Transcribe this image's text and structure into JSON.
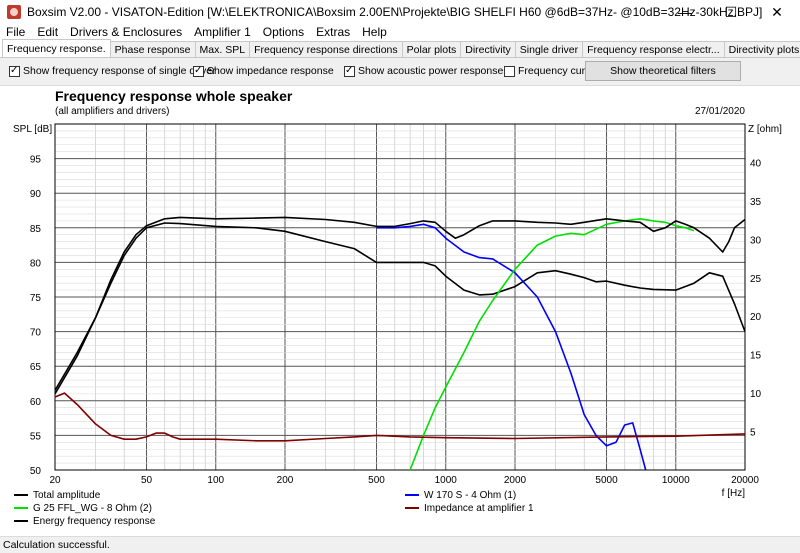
{
  "window": {
    "title": "Boxsim V2.00 - VISATON-Edition [W:\\ELEKTRONICA\\Boxsim 2.00EN\\Projekte\\BIG SHELFI H60 @6dB=37Hz- @10dB=32Hz-30kHz.BPJ]",
    "minimize": "—",
    "maximize": "☐",
    "close": "✕"
  },
  "menu": [
    "File",
    "Edit",
    "Drivers & Enclosures",
    "Amplifier 1",
    "Options",
    "Extras",
    "Help"
  ],
  "tabs": [
    {
      "label": "Frequency response.",
      "active": true
    },
    {
      "label": "Phase response",
      "active": false
    },
    {
      "label": "Max. SPL",
      "active": false
    },
    {
      "label": "Frequency response directions",
      "active": false
    },
    {
      "label": "Polar plots",
      "active": false
    },
    {
      "label": "Directivity",
      "active": false
    },
    {
      "label": "Single driver",
      "active": false
    },
    {
      "label": "Frequency response electr...",
      "active": false
    },
    {
      "label": "Directivity plots",
      "active": false
    }
  ],
  "options": {
    "single_driver": {
      "label": "Show frequency response of single driver",
      "checked": true
    },
    "impedance": {
      "label": "Show impedance response",
      "checked": true
    },
    "acoustic_power": {
      "label": "Show acoustic power response",
      "checked": true
    },
    "cursor": {
      "label": "Frequency cursor",
      "checked": false
    },
    "theoretical_btn": "Show theoretical filters"
  },
  "status": "Calculation successful.",
  "chart_data": {
    "type": "line",
    "title": "Frequency response whole speaker",
    "subtitle": "(all amplifiers and drivers)",
    "date": "27/01/2020",
    "ylabel": "SPL [dB]",
    "y2label": "Z [ohm]",
    "xlabel": "f [Hz]",
    "xscale": "log",
    "xlim": [
      20,
      20000
    ],
    "ylim": [
      50,
      100
    ],
    "y2lim": [
      0,
      45
    ],
    "xticks": [
      20,
      50,
      100,
      200,
      500,
      1000,
      2000,
      5000,
      10000,
      20000
    ],
    "yticks": [
      50,
      55,
      60,
      65,
      70,
      75,
      80,
      85,
      90,
      95
    ],
    "y2ticks": [
      5,
      10,
      15,
      20,
      25,
      30,
      35,
      40
    ],
    "grid": true,
    "legend_position": "bottom",
    "series": [
      {
        "name": "Total amplitude",
        "color": "#000000",
        "axis": "left",
        "points": [
          [
            20,
            61.5
          ],
          [
            25,
            67
          ],
          [
            30,
            72
          ],
          [
            35,
            77
          ],
          [
            40,
            81
          ],
          [
            45,
            83.5
          ],
          [
            50,
            85
          ],
          [
            60,
            85.7
          ],
          [
            70,
            85.6
          ],
          [
            100,
            85.2
          ],
          [
            150,
            85
          ],
          [
            200,
            84.5
          ],
          [
            300,
            83
          ],
          [
            400,
            82
          ],
          [
            500,
            80
          ],
          [
            600,
            80
          ],
          [
            700,
            80
          ],
          [
            800,
            80
          ],
          [
            900,
            79.5
          ],
          [
            1000,
            78
          ],
          [
            1200,
            76
          ],
          [
            1400,
            75.3
          ],
          [
            1600,
            75.4
          ],
          [
            2000,
            76.5
          ],
          [
            2500,
            78.5
          ],
          [
            3000,
            78.8
          ],
          [
            3500,
            78.3
          ],
          [
            4000,
            77.8
          ],
          [
            4500,
            77.2
          ],
          [
            5000,
            77.3
          ],
          [
            6000,
            76.7
          ],
          [
            7000,
            76.3
          ],
          [
            8000,
            76.1
          ],
          [
            10000,
            76
          ],
          [
            12000,
            77
          ],
          [
            14000,
            78.5
          ],
          [
            16000,
            78
          ],
          [
            18000,
            74
          ],
          [
            20000,
            70
          ]
        ]
      },
      {
        "name": "W 170 S - 4 Ohm (1)",
        "color": "#0000ff",
        "axis": "left",
        "points": [
          [
            500,
            85
          ],
          [
            600,
            85
          ],
          [
            700,
            85.2
          ],
          [
            800,
            85.5
          ],
          [
            900,
            85
          ],
          [
            1000,
            83.5
          ],
          [
            1200,
            81.5
          ],
          [
            1400,
            80.7
          ],
          [
            1600,
            80.5
          ],
          [
            2000,
            78.5
          ],
          [
            2500,
            75
          ],
          [
            3000,
            70
          ],
          [
            3500,
            64
          ],
          [
            4000,
            58
          ],
          [
            4500,
            55
          ],
          [
            5000,
            53.5
          ],
          [
            5500,
            54
          ],
          [
            6000,
            56.5
          ],
          [
            6500,
            56.8
          ],
          [
            7000,
            53
          ],
          [
            7400,
            50
          ]
        ]
      },
      {
        "name": "G 25 FFL_WG - 8 Ohm (2)",
        "color": "#00e000",
        "axis": "left",
        "points": [
          [
            700,
            50
          ],
          [
            800,
            55
          ],
          [
            900,
            59
          ],
          [
            1000,
            62
          ],
          [
            1200,
            67
          ],
          [
            1400,
            71.5
          ],
          [
            1600,
            74.5
          ],
          [
            2000,
            79
          ],
          [
            2500,
            82.5
          ],
          [
            3000,
            83.8
          ],
          [
            3500,
            84.2
          ],
          [
            4000,
            84
          ],
          [
            5000,
            85.5
          ],
          [
            6000,
            86
          ],
          [
            7000,
            86.3
          ],
          [
            8000,
            86
          ],
          [
            9000,
            85.8
          ],
          [
            10000,
            85.3
          ],
          [
            11000,
            85
          ],
          [
            12000,
            84.6
          ]
        ]
      },
      {
        "name": "Energy frequency response",
        "color": "#000000",
        "axis": "left",
        "points": [
          [
            20,
            61
          ],
          [
            25,
            66.5
          ],
          [
            30,
            72
          ],
          [
            35,
            77.5
          ],
          [
            40,
            81.5
          ],
          [
            45,
            84
          ],
          [
            50,
            85.3
          ],
          [
            60,
            86.3
          ],
          [
            70,
            86.5
          ],
          [
            100,
            86.3
          ],
          [
            150,
            86.4
          ],
          [
            200,
            86.5
          ],
          [
            300,
            86.2
          ],
          [
            400,
            85.8
          ],
          [
            500,
            85.2
          ],
          [
            600,
            85.2
          ],
          [
            700,
            85.6
          ],
          [
            800,
            86
          ],
          [
            900,
            85.8
          ],
          [
            1000,
            84.5
          ],
          [
            1100,
            83.5
          ],
          [
            1200,
            84
          ],
          [
            1400,
            85.3
          ],
          [
            1600,
            86
          ],
          [
            2000,
            86
          ],
          [
            2500,
            85.8
          ],
          [
            3000,
            85.7
          ],
          [
            3500,
            85.5
          ],
          [
            4000,
            85.8
          ],
          [
            5000,
            86.3
          ],
          [
            6000,
            86
          ],
          [
            7000,
            85.8
          ],
          [
            8000,
            84.5
          ],
          [
            9000,
            85
          ],
          [
            10000,
            86
          ],
          [
            11000,
            85.5
          ],
          [
            12000,
            85
          ],
          [
            14000,
            83.5
          ],
          [
            16000,
            81.5
          ],
          [
            17000,
            83
          ],
          [
            18000,
            85
          ],
          [
            20000,
            86.2
          ]
        ]
      },
      {
        "name": "Impedance at amplifier 1",
        "color": "#800000",
        "axis": "right",
        "points": [
          [
            20,
            9.5
          ],
          [
            22,
            10
          ],
          [
            25,
            8.5
          ],
          [
            30,
            6
          ],
          [
            35,
            4.5
          ],
          [
            40,
            4
          ],
          [
            45,
            4
          ],
          [
            50,
            4.3
          ],
          [
            55,
            4.8
          ],
          [
            60,
            4.8
          ],
          [
            65,
            4.3
          ],
          [
            70,
            4
          ],
          [
            100,
            4
          ],
          [
            150,
            3.8
          ],
          [
            200,
            3.8
          ],
          [
            300,
            4.1
          ],
          [
            400,
            4.3
          ],
          [
            500,
            4.5
          ],
          [
            700,
            4.3
          ],
          [
            1000,
            4.2
          ],
          [
            2000,
            4.1
          ],
          [
            5000,
            4.3
          ],
          [
            10000,
            4.4
          ],
          [
            20000,
            4.7
          ]
        ]
      }
    ]
  }
}
